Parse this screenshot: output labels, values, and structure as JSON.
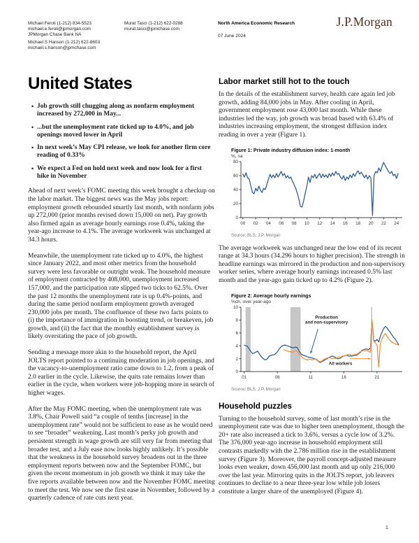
{
  "header": {
    "author1_name": "Michael Feroli  (1-212) 834-5523",
    "author1_email": "michael.e.feroli@jpmorgan.com",
    "author1_org": "JPMorgan Chase Bank NA",
    "author2_name": "Michael S Hanson  (1-212) 622-8603",
    "author2_email": "michael.s.hanson@jpmchase.com",
    "author3_name": "Murat Tasci  (1-212) 622-0288",
    "author3_email": "murat.tasci@jpmchase.com",
    "research_label": "North America Economic Research",
    "date": "07 June 2024",
    "logo": "J.P.Morgan"
  },
  "left_column": {
    "title": "United States",
    "bullets": [
      "Job growth still chugging along as nonfarm employment increased by 272,000 in May...",
      "...but the unemployment rate ticked up to 4.0%, and job openings moved lower in April",
      "In next week’s May CPI release, we look for another firm core reading of 0.33%",
      "We expect a Fed on hold next week and now look for a first hike in November"
    ],
    "paragraphs": [
      "Ahead of next week’s FOMC meeting this week brought a checkup on the labor market. The biggest news was the May jobs report: employment growth rebounded smartly last month, with nonfarm jobs up 272,000 (prior months revised down 15,000 on net). Pay growth also firmed again as average hourly earnings rose 0.4%, taking the year-ago increase to 4.1%. The average workweek was unchanged at 34.3 hours.",
      "Meanwhile, the unemployment rate ticked up to 4.0%, the highest since January 2022, and most other metrics from the household survey were less favorable or outright weak. The household measure of employment contracted by 408,000, unemployment increased 157,000, and the participation rate slipped two ticks to 62.5%. Over the past 12 months the unemployment rate is up 0.4%-points, and during the same period nonfarm employment growth averaged 230,000 jobs per month. The confluence of these two facts points to (i) the importance of immigration in boosting trend, or breakeven, job growth, and (ii) the fact that the monthly establishment survey is likely overstating the pace of job growth.",
      "Sending a message more akin to the household report, the April JOLTS report pointed to a continuing moderation in job openings, and the vacancy-to-unemployment ratio came down to 1.2, from a peak of 2.0 earlier in the cycle. Likewise, the quits rate remains lower than earlier in the cycle, when workers were job-hopping more in search of higher wages.",
      "After the May FOMC meeting, when the unemployment rate was 3.8%, Chair Powell said “a couple of tenths [increase] in the unemployment rate” would not be sufficient to ease as he would need to see “broader” weakening. Last month’s perky job growth and persistent strength in wage growth are still very far from meeting that broader test, and a July ease now looks highly unlikely. It’s possible that the weakness in the household survey broadens out in the three employment reports between now and the September FOMC, but given the recent momentum in job growth we think it may take the five reports available between now and the November FOMC meeting to meet the test. We now see the first ease in November, followed by a quarterly cadence of rate cuts next year."
    ]
  },
  "right_column": {
    "section1_heading": "Labor market still hot to the touch",
    "section1_para": "In the details of the establishment survey, health care again led job growth, adding 84,000 jobs in May. After cooling in April, government employment rose 43,000 last month. While these industries led the way, job growth was broad based with 63.4% of industries increasing employment, the strongest diffusion index reading in over a year (Figure 1).",
    "between_figs_para": "The average workweek was unchanged near the low end of its recent range at 34.3 hours (34.296 hours to higher precision). The strength in headline earnings was mirrored in the production and non-supervisory worker series, where average hourly earnings increased 0.5% last month and the year-ago gain ticked up to 4.2% (Figure 2).",
    "section2_heading": "Household puzzles",
    "section2_para": "Turning to the household survey, some of last month’s rise in the unemployment rate was due to higher teen unemployment, though the 20+ rate also increased a tick to 3.6%, versus a cycle low of 3.2%. The 376,000 year-ago increase in household employment still contrasts markedly with the 2.786 million rise in the establishment survey (Figure 3). Moreover, the payroll concept-adjusted measure looks even weaker, down 456,000 last month and up only 216,000 over the last year. Mirroring quits in the JOLTS report, job leavers continues to decline to a near three-year low while job losers constitute a larger share of the unemployed (Figure 4)."
  },
  "page_number": "1",
  "chart_data": [
    {
      "type": "line",
      "title": "Figure 1: Private industry diffusion index: 1-month",
      "ylabel": "%, sa",
      "source": "Source: BLS, J.P. Morgan",
      "xlim": [
        1999.7,
        2024.9
      ],
      "ylim": [
        0,
        80
      ],
      "grid": false,
      "y_ticks": [
        0,
        20,
        40,
        60,
        80
      ],
      "x_ticks": [
        {
          "v": 2000,
          "label": "00"
        },
        {
          "v": 2002,
          "label": "02"
        },
        {
          "v": 2004,
          "label": "04"
        },
        {
          "v": 2006,
          "label": "06"
        },
        {
          "v": 2008,
          "label": "08"
        },
        {
          "v": 2010,
          "label": "10"
        },
        {
          "v": 2012,
          "label": "12"
        },
        {
          "v": 2014,
          "label": "14"
        },
        {
          "v": 2016,
          "label": "16"
        },
        {
          "v": 2018,
          "label": "18"
        },
        {
          "v": 2020,
          "label": "20"
        },
        {
          "v": 2022,
          "label": "22"
        },
        {
          "v": 2024,
          "label": "24"
        }
      ],
      "series": [
        {
          "name": "Private industry diffusion index, 1-month",
          "color": "#31618f",
          "x_start": 2000.0,
          "x_step": 0.25,
          "values": [
            62,
            58,
            64,
            57,
            55,
            45,
            36,
            34,
            42,
            38,
            45,
            39,
            36,
            42,
            40,
            47,
            55,
            62,
            57,
            61,
            57,
            63,
            58,
            62,
            66,
            60,
            63,
            57,
            60,
            56,
            58,
            52,
            47,
            42,
            35,
            26,
            16,
            15,
            24,
            35,
            45,
            58,
            50,
            60,
            57,
            62,
            56,
            60,
            63,
            57,
            62,
            58,
            61,
            57,
            63,
            59,
            64,
            60,
            66,
            62,
            63,
            58,
            55,
            60,
            53,
            58,
            55,
            61,
            57,
            63,
            59,
            64,
            67,
            62,
            65,
            61,
            57,
            61,
            55,
            60,
            57,
            3,
            60,
            66,
            64,
            71,
            66,
            73,
            79,
            74,
            70,
            66,
            63,
            66,
            60,
            62,
            56,
            63
          ]
        }
      ]
    },
    {
      "type": "line",
      "title": "Figure 2: Average hourly earnings",
      "ylabel": "%ch, over year-ago",
      "source": "Source: BLS, J.P. Morgan",
      "xlim": [
        2000.5,
        2024.8
      ],
      "ylim": [
        0,
        10
      ],
      "grid": false,
      "y_ticks": [
        0,
        2,
        4,
        6,
        8,
        10
      ],
      "x_ticks": [
        {
          "v": 2001,
          "label": "01"
        },
        {
          "v": 2006,
          "label": "06"
        },
        {
          "v": 2011,
          "label": "11"
        },
        {
          "v": 2016,
          "label": "16"
        },
        {
          "v": 2021,
          "label": "21"
        }
      ],
      "bands": [
        [
          2001.2,
          2001.95
        ],
        [
          2007.95,
          2009.5
        ]
      ],
      "vline": 2020.2,
      "series": [
        {
          "name": "Production and non-supervisory",
          "color": "#31618f",
          "x_start": 2001.0,
          "x_step": 0.25,
          "values": [
            4.1,
            4.0,
            3.9,
            3.5,
            3.1,
            2.8,
            2.9,
            3.0,
            3.2,
            2.8,
            2.4,
            2.1,
            1.9,
            1.8,
            2.0,
            2.4,
            2.5,
            2.6,
            2.6,
            2.8,
            3.1,
            3.5,
            3.8,
            4.0,
            4.1,
            4.1,
            4.0,
            3.9,
            3.8,
            3.7,
            3.7,
            3.8,
            3.7,
            3.2,
            2.8,
            2.6,
            2.5,
            2.4,
            2.3,
            2.2,
            2.2,
            2.1,
            2.0,
            1.9,
            1.8,
            1.5,
            1.4,
            1.6,
            1.7,
            1.9,
            2.0,
            2.2,
            2.3,
            2.4,
            2.3,
            2.2,
            2.0,
            2.0,
            2.1,
            2.3,
            2.4,
            2.5,
            2.5,
            2.4,
            2.4,
            2.4,
            2.5,
            2.5,
            2.6,
            2.8,
            3.0,
            3.3,
            3.4,
            3.5,
            3.5,
            3.4,
            3.7,
            8.0,
            4.9,
            4.7,
            5.0,
            4.6,
            5.5,
            6.1,
            6.7,
            7.0,
            6.8,
            6.4,
            6.1,
            5.7,
            5.3,
            5.0,
            4.6,
            4.2
          ]
        },
        {
          "name": "All workers",
          "color": "#ec9240",
          "x_start": 2007.0,
          "x_step": 0.25,
          "values": [
            3.4,
            3.3,
            3.2,
            3.1,
            3.1,
            3.0,
            3.1,
            3.2,
            3.1,
            2.8,
            2.5,
            2.2,
            2.0,
            1.9,
            1.8,
            1.9,
            1.9,
            1.8,
            1.9,
            2.0,
            1.7,
            1.6,
            1.5,
            1.7,
            1.9,
            2.0,
            2.1,
            2.2,
            2.1,
            2.0,
            2.1,
            2.0,
            2.2,
            2.3,
            2.2,
            2.4,
            2.4,
            2.5,
            2.6,
            2.7,
            2.6,
            2.5,
            2.6,
            2.7,
            2.7,
            2.9,
            3.1,
            3.2,
            3.3,
            3.2,
            3.3,
            3.1,
            3.0,
            8.0,
            4.7,
            4.4,
            4.2,
            0.7,
            4.4,
            5.0,
            5.6,
            5.9,
            5.5,
            5.1,
            4.8,
            4.6,
            4.4,
            4.3,
            4.2,
            4.1
          ]
        }
      ],
      "annotations": [
        {
          "lines": [
            "Production",
            "and non-supervisory"
          ],
          "x": 2013.4,
          "y": 8.2,
          "text_color": "#222222",
          "color": "#31618f",
          "arrow": [
            2012.1,
            6.6,
            2011.0,
            2.8
          ]
        },
        {
          "lines": [
            "All workers"
          ],
          "x": 2015.5,
          "y": 1.05,
          "text_color": "#222222",
          "color": "#ec9240",
          "arrow": [
            2016.9,
            2.0,
            2020.05,
            2.0
          ]
        }
      ]
    }
  ]
}
